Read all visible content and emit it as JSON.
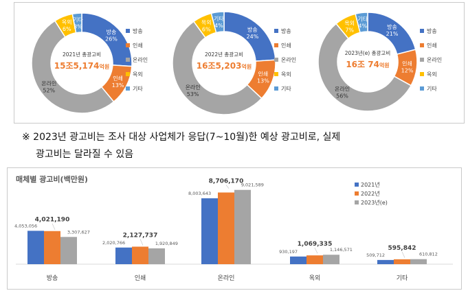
{
  "donuts": [
    {
      "center_line1": "2021년 총광고비",
      "center_big": "15조5,174",
      "center_unit": "억원",
      "slices": [
        {
          "label": "방송",
          "pct": 26
        },
        {
          "label": "인쇄",
          "pct": 13
        },
        {
          "label": "온라인",
          "pct": 52
        },
        {
          "label": "옥외",
          "pct": 6
        },
        {
          "label": "기타",
          "pct": 3
        }
      ]
    },
    {
      "center_line1": "2022년 총광고비",
      "center_big": "16조5,203",
      "center_unit": "억원",
      "slices": [
        {
          "label": "방송",
          "pct": 24
        },
        {
          "label": "인쇄",
          "pct": 13
        },
        {
          "label": "온라인",
          "pct": 53
        },
        {
          "label": "옥외",
          "pct": 6
        },
        {
          "label": "기타",
          "pct": 4
        }
      ]
    },
    {
      "center_line1": "2023년(e) 총광고비",
      "center_big": "16조 74",
      "center_unit": "억원",
      "slices": [
        {
          "label": "방송",
          "pct": 21
        },
        {
          "label": "인쇄",
          "pct": 12
        },
        {
          "label": "온라인",
          "pct": 56
        },
        {
          "label": "옥외",
          "pct": 7
        },
        {
          "label": "기타",
          "pct": 4
        }
      ]
    }
  ],
  "donut_legend": [
    "방송",
    "인쇄",
    "온라인",
    "옥외",
    "기타"
  ],
  "colors": {
    "broadcast": "#4472c4",
    "print": "#ed7d31",
    "online": "#a5a5a5",
    "outdoor": "#ffc000",
    "other": "#5b9bd5",
    "highlight": "#ed7d31"
  },
  "note": {
    "line1": "※ 2023년 광고비는 조사 대상 사업체가 응답(7~10월)한 예상 광고비로, 실제",
    "line2": "광고비는 달라질 수 있음"
  },
  "chart_data": {
    "type": "bar",
    "title": "매체별 광고비(백만원)",
    "categories": [
      "방송",
      "인쇄",
      "온라인",
      "옥외",
      "기타"
    ],
    "series": [
      {
        "name": "2021년",
        "values": [
          4053056,
          2020766,
          8003643,
          930197,
          509712
        ],
        "labels": [
          "4,053,056",
          "2,020,766",
          "8,003,643",
          "930,197",
          "509,712"
        ]
      },
      {
        "name": "2022년",
        "values": [
          4021190,
          2127737,
          8706170,
          1069335,
          595842
        ],
        "labels": [
          "4,021,190",
          "2,127,737",
          "8,706,170",
          "1,069,335",
          "595,842"
        ]
      },
      {
        "name": "2023년(e)",
        "values": [
          3307627,
          1920849,
          9021589,
          1146571,
          610812
        ],
        "labels": [
          "3,307,627",
          "1,920,849",
          "9,021,589",
          "1,146,571",
          "610,812"
        ]
      }
    ],
    "ylim": [
      0,
      10000000
    ],
    "legend": "top-right",
    "grid": false
  }
}
